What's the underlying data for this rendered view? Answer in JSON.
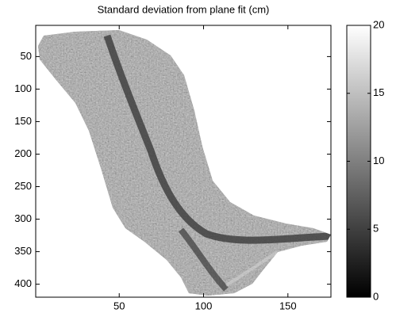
{
  "chart_data": {
    "type": "image",
    "title": "Standard deviation from plane fit (cm)",
    "xlim": [
      0.5,
      175.5
    ],
    "xticks": [
      50,
      100,
      150
    ],
    "ylim": [
      2,
      420
    ],
    "yticks": [
      50,
      100,
      150,
      200,
      250,
      300,
      350,
      400
    ],
    "y_reversed": true,
    "colormap": "gray",
    "clim": [
      0,
      20
    ],
    "cticks": [
      0,
      5,
      10,
      15,
      20
    ]
  }
}
